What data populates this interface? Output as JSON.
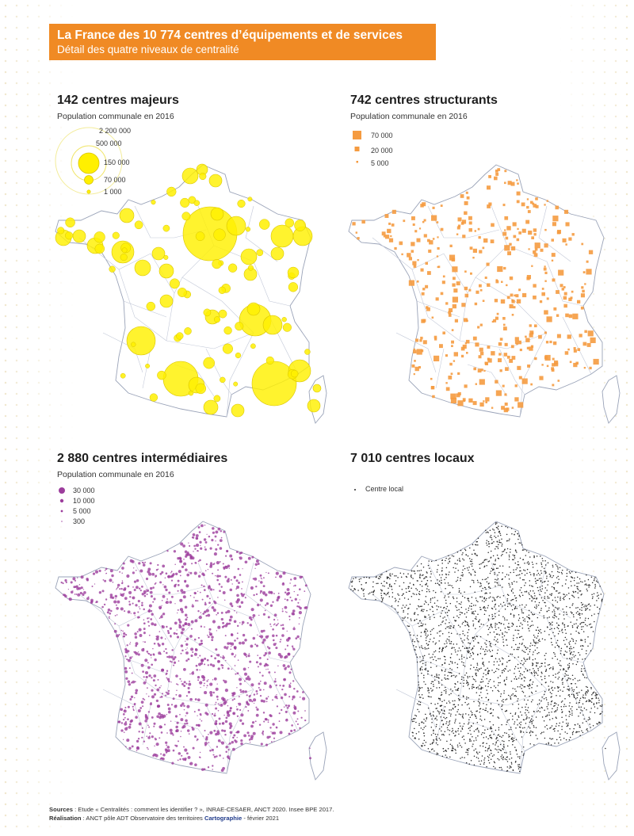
{
  "header": {
    "title": "La France des 10 774 centres d’équipements et de services",
    "subtitle": "Détail des quatre niveaux de centralité"
  },
  "panels": [
    {
      "title": "142 centres majeurs",
      "subtitle": "Population communale en 2016",
      "color": "#fff000",
      "stroke": "#d9c400",
      "legend": [
        "2 200 000",
        "500 000",
        "150 000",
        "70 000",
        "1 000"
      ]
    },
    {
      "title": "742 centres structurants",
      "subtitle": "Population communale en 2016",
      "color": "#f59b40",
      "legend": [
        "70 000",
        "20 000",
        "5 000"
      ]
    },
    {
      "title": "2 880 centres intermédiaires",
      "subtitle": "Population communale en 2016",
      "color": "#9c3d9c",
      "legend": [
        "30 000",
        "10 000",
        "5 000",
        "300"
      ]
    },
    {
      "title": "7 010 centres locaux",
      "subtitle": "",
      "color": "#2a2a2a",
      "legend": [
        "Centre local"
      ]
    }
  ],
  "footer": {
    "sources_label": "Sources",
    "sources_text": " : Etude « Centralités : comment les identifier ? », INRAE-CESAER, ANCT 2020. Insee BPE 2017.",
    "realisation_label": "Réalisation",
    "realisation_text": " : ANCT pôle ADT Observatoire des territoires ",
    "brand": "Cartographie",
    "date": " - février 2021"
  }
}
